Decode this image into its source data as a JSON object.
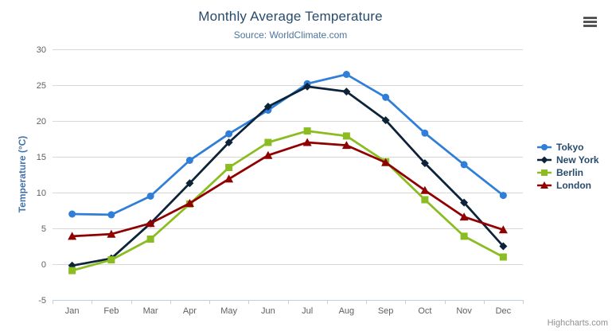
{
  "chart_data": {
    "type": "line",
    "title": "Monthly Average Temperature",
    "subtitle": "Source: WorldClimate.com",
    "categories": [
      "Jan",
      "Feb",
      "Mar",
      "Apr",
      "May",
      "Jun",
      "Jul",
      "Aug",
      "Sep",
      "Oct",
      "Nov",
      "Dec"
    ],
    "series": [
      {
        "name": "Tokyo",
        "color": "#2f7ed8",
        "marker": "circle",
        "values": [
          7.0,
          6.9,
          9.5,
          14.5,
          18.2,
          21.5,
          25.2,
          26.5,
          23.3,
          18.3,
          13.9,
          9.6
        ]
      },
      {
        "name": "New York",
        "color": "#0d233a",
        "marker": "diamond",
        "values": [
          -0.2,
          0.8,
          5.7,
          11.3,
          17.0,
          22.0,
          24.8,
          24.1,
          20.1,
          14.1,
          8.6,
          2.5
        ]
      },
      {
        "name": "Berlin",
        "color": "#8bbc21",
        "marker": "square",
        "values": [
          -0.9,
          0.6,
          3.5,
          8.4,
          13.5,
          17.0,
          18.6,
          17.9,
          14.3,
          9.0,
          3.9,
          1.0
        ]
      },
      {
        "name": "London",
        "color": "#910000",
        "marker": "triangle",
        "values": [
          3.9,
          4.2,
          5.7,
          8.5,
          11.9,
          15.2,
          17.0,
          16.6,
          14.2,
          10.3,
          6.6,
          4.8
        ]
      }
    ],
    "xlabel": "",
    "ylabel": "Temperature (°C)",
    "ylim": [
      -5,
      30
    ],
    "ytick_step": 5,
    "grid": true,
    "legend_position": "right-middle",
    "colors": {
      "gridline": "#d8d8d8",
      "axis_line": "#c0d0e0",
      "axis_label": "#606060",
      "title": "#274b6d",
      "subtitle": "#4d759e",
      "axis_title": "#4572a7",
      "legend_text": "#274b6d",
      "credit": "#909090"
    }
  },
  "icons": {
    "context_menu": "hamburger-menu-icon"
  },
  "credit_label": "Highcharts.com"
}
